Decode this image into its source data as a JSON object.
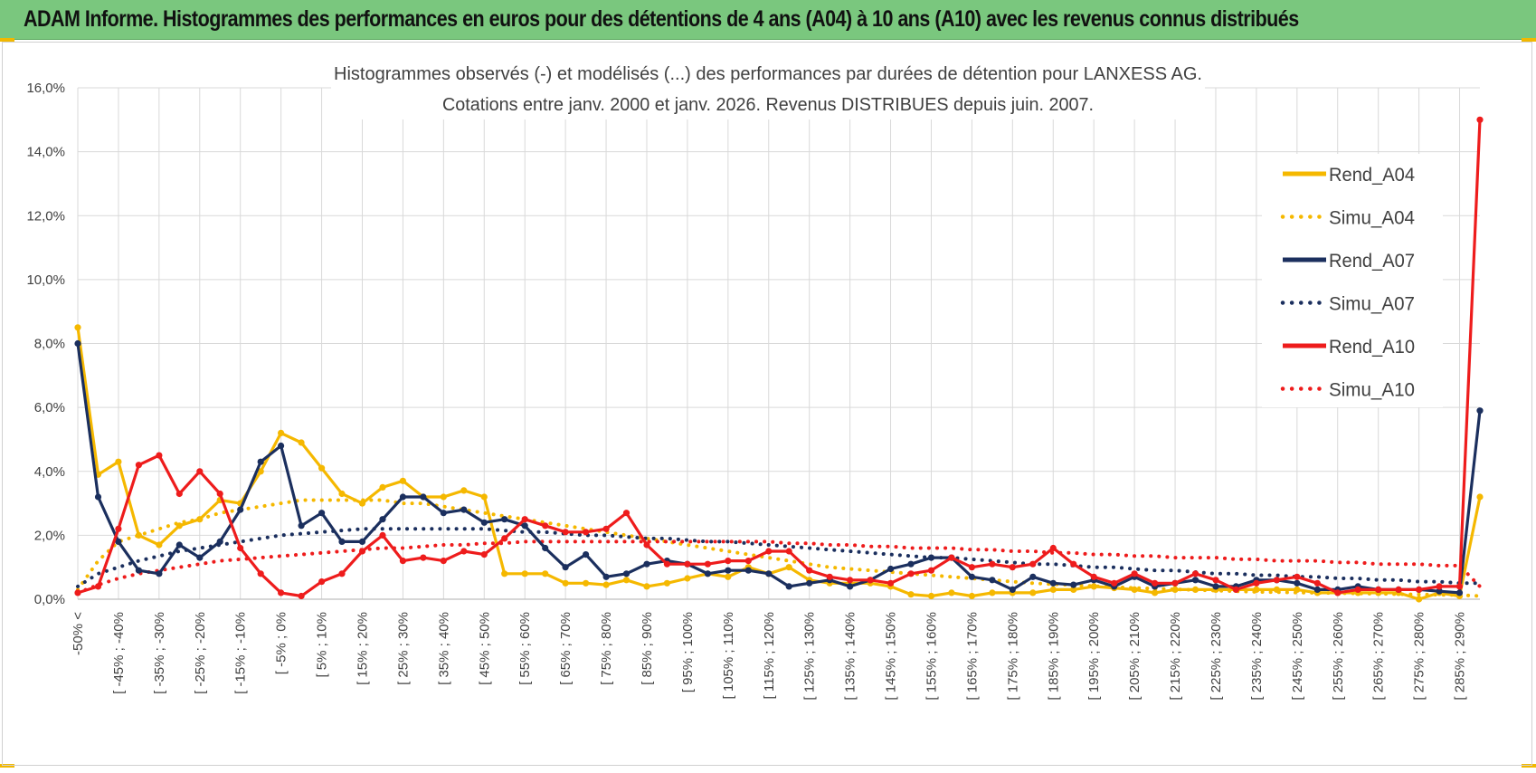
{
  "page": {
    "title": "ADAM Informe. Histogrammes des performances en euros pour des détentions de 4 ans (A04) à 10 ans (A10) avec les revenus connus distribués"
  },
  "colors": {
    "banner": "#7ac77e",
    "A04": "#f5b800",
    "A07": "#1b2f5e",
    "A10": "#ee1c1c",
    "grid": "#d9d9d9"
  },
  "chart_data": {
    "type": "line",
    "title_lines": [
      "Histogrammes observés (-) et modélisés (...) des performances par durées de détention pour LANXESS AG.",
      "Cotations entre janv. 2000 et janv. 2026. Revenus DISTRIBUES depuis juin. 2007."
    ],
    "ylim": [
      0,
      16
    ],
    "yticks": [
      "0,0%",
      "2,0%",
      "4,0%",
      "6,0%",
      "8,0%",
      "10,0%",
      "12,0%",
      "14,0%",
      "16,0%"
    ],
    "xtick_labels": [
      "-50% <",
      "[ -45% ; -40%",
      "[ -35% ; -30%",
      "[ -25% ; -20%",
      "[ -15% ; -10%",
      "[ -5% ; 0%",
      "[ 5% ; 10%",
      "[ 15% ; 20%",
      "[ 25% ; 30%",
      "[ 35% ; 40%",
      "[ 45% ; 50%",
      "[ 55% ; 60%",
      "[ 65% ; 70%",
      "[ 75% ; 80%",
      "[ 85% ; 90%",
      "[ 95% ; 100%",
      "[ 105% ; 110%",
      "[ 115% ; 120%",
      "[ 125% ; 130%",
      "[ 135% ; 140%",
      "[ 145% ; 150%",
      "[ 155% ; 160%",
      "[ 165% ; 170%",
      "[ 175% ; 180%",
      "[ 185% ; 190%",
      "[ 195% ; 200%",
      "[ 205% ; 210%",
      "[ 215% ; 220%",
      "[ 225% ; 230%",
      "[ 235% ; 240%",
      "[ 245% ; 250%",
      "[ 255% ; 260%",
      "[ 265% ; 270%",
      "[ 275% ; 280%",
      "[ 285% ; 290%"
    ],
    "legend": {
      "position": "right"
    },
    "grid": true,
    "series": [
      {
        "name": "Rend_A04",
        "style": "solid",
        "color": "#f5b800",
        "values": [
          8.5,
          3.9,
          4.3,
          2.0,
          1.7,
          2.3,
          2.5,
          3.1,
          3.0,
          4.0,
          5.2,
          4.9,
          4.1,
          3.3,
          3.0,
          3.5,
          3.7,
          3.2,
          3.2,
          3.4,
          3.2,
          0.8,
          0.8,
          0.8,
          0.5,
          0.5,
          0.45,
          0.6,
          0.4,
          0.5,
          0.65,
          0.8,
          0.7,
          1.0,
          0.8,
          1.0,
          0.6,
          0.5,
          0.5,
          0.5,
          0.4,
          0.15,
          0.1,
          0.2,
          0.1,
          0.2,
          0.2,
          0.2,
          0.3,
          0.3,
          0.4,
          0.35,
          0.3,
          0.2,
          0.3,
          0.3,
          0.3,
          0.3,
          0.3,
          0.3,
          0.3,
          0.2,
          0.2,
          0.2,
          0.2,
          0.2,
          0.0,
          0.2,
          0.1,
          3.2
        ]
      },
      {
        "name": "Simu_A04",
        "style": "dotted",
        "color": "#f5b800",
        "values": [
          0.3,
          1.2,
          1.8,
          2.0,
          2.2,
          2.4,
          2.5,
          2.7,
          2.8,
          2.9,
          3.0,
          3.1,
          3.1,
          3.1,
          3.1,
          3.1,
          3.0,
          3.0,
          2.9,
          2.8,
          2.7,
          2.6,
          2.5,
          2.4,
          2.3,
          2.2,
          2.1,
          2.0,
          1.9,
          1.8,
          1.7,
          1.6,
          1.5,
          1.4,
          1.3,
          1.2,
          1.1,
          1.0,
          0.95,
          0.9,
          0.85,
          0.8,
          0.75,
          0.7,
          0.65,
          0.6,
          0.55,
          0.5,
          0.47,
          0.44,
          0.41,
          0.38,
          0.35,
          0.33,
          0.31,
          0.29,
          0.27,
          0.25,
          0.23,
          0.22,
          0.21,
          0.2,
          0.19,
          0.18,
          0.17,
          0.16,
          0.15,
          0.14,
          0.13,
          0.1
        ]
      },
      {
        "name": "Rend_A07",
        "style": "solid",
        "color": "#1b2f5e",
        "values": [
          8.0,
          3.2,
          1.8,
          0.9,
          0.8,
          1.7,
          1.3,
          1.8,
          2.8,
          4.3,
          4.8,
          2.3,
          2.7,
          1.8,
          1.8,
          2.5,
          3.2,
          3.2,
          2.7,
          2.8,
          2.4,
          2.5,
          2.3,
          1.6,
          1.0,
          1.4,
          0.7,
          0.8,
          1.1,
          1.2,
          1.1,
          0.8,
          0.9,
          0.9,
          0.8,
          0.4,
          0.5,
          0.6,
          0.4,
          0.6,
          0.95,
          1.1,
          1.3,
          1.3,
          0.7,
          0.6,
          0.3,
          0.7,
          0.5,
          0.45,
          0.6,
          0.4,
          0.7,
          0.4,
          0.5,
          0.6,
          0.4,
          0.4,
          0.6,
          0.6,
          0.5,
          0.3,
          0.3,
          0.4,
          0.3,
          0.3,
          0.3,
          0.25,
          0.2,
          5.9
        ]
      },
      {
        "name": "Simu_A07",
        "style": "dotted",
        "color": "#1b2f5e",
        "values": [
          0.4,
          0.8,
          1.0,
          1.2,
          1.35,
          1.5,
          1.6,
          1.7,
          1.8,
          1.9,
          2.0,
          2.05,
          2.1,
          2.15,
          2.2,
          2.2,
          2.2,
          2.2,
          2.2,
          2.2,
          2.2,
          2.15,
          2.1,
          2.1,
          2.05,
          2.0,
          2.0,
          1.95,
          1.9,
          1.9,
          1.85,
          1.8,
          1.8,
          1.75,
          1.7,
          1.65,
          1.6,
          1.55,
          1.5,
          1.45,
          1.4,
          1.35,
          1.3,
          1.3,
          1.25,
          1.2,
          1.15,
          1.1,
          1.1,
          1.05,
          1.0,
          1.0,
          0.95,
          0.9,
          0.9,
          0.85,
          0.8,
          0.8,
          0.75,
          0.75,
          0.7,
          0.7,
          0.65,
          0.65,
          0.6,
          0.6,
          0.55,
          0.55,
          0.5,
          0.5
        ]
      },
      {
        "name": "Rend_A10",
        "style": "solid",
        "color": "#ee1c1c",
        "values": [
          0.2,
          0.4,
          2.2,
          4.2,
          4.5,
          3.3,
          4.0,
          3.3,
          1.6,
          0.8,
          0.2,
          0.1,
          0.55,
          0.8,
          1.5,
          2.0,
          1.2,
          1.3,
          1.2,
          1.5,
          1.4,
          1.9,
          2.5,
          2.3,
          2.1,
          2.1,
          2.2,
          2.7,
          1.7,
          1.1,
          1.1,
          1.1,
          1.2,
          1.2,
          1.5,
          1.5,
          0.9,
          0.7,
          0.6,
          0.6,
          0.5,
          0.8,
          0.9,
          1.3,
          1.0,
          1.1,
          1.0,
          1.1,
          1.6,
          1.1,
          0.7,
          0.5,
          0.8,
          0.5,
          0.5,
          0.8,
          0.6,
          0.3,
          0.5,
          0.6,
          0.7,
          0.5,
          0.2,
          0.3,
          0.3,
          0.3,
          0.3,
          0.4,
          0.4,
          15.0
        ]
      },
      {
        "name": "Simu_A10",
        "style": "dotted",
        "color": "#ee1c1c",
        "values": [
          0.2,
          0.45,
          0.65,
          0.8,
          0.9,
          1.0,
          1.1,
          1.2,
          1.25,
          1.3,
          1.35,
          1.4,
          1.45,
          1.5,
          1.55,
          1.6,
          1.6,
          1.65,
          1.7,
          1.7,
          1.75,
          1.75,
          1.8,
          1.8,
          1.8,
          1.8,
          1.8,
          1.8,
          1.8,
          1.8,
          1.8,
          1.8,
          1.8,
          1.8,
          1.8,
          1.75,
          1.75,
          1.7,
          1.7,
          1.65,
          1.65,
          1.6,
          1.6,
          1.6,
          1.55,
          1.55,
          1.5,
          1.5,
          1.45,
          1.45,
          1.4,
          1.4,
          1.35,
          1.35,
          1.3,
          1.3,
          1.3,
          1.25,
          1.25,
          1.2,
          1.2,
          1.2,
          1.15,
          1.15,
          1.1,
          1.1,
          1.1,
          1.05,
          1.05,
          0.4
        ]
      }
    ]
  }
}
